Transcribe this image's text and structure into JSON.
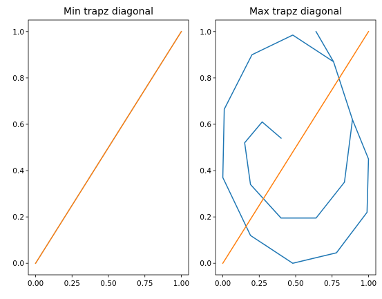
{
  "chart_data": [
    {
      "type": "line",
      "title": "Min trapz diagonal",
      "xlabel": "",
      "ylabel": "",
      "xlim": [
        -0.05,
        1.05
      ],
      "ylim": [
        -0.05,
        1.05
      ],
      "xticks": [
        "0.00",
        "0.25",
        "0.50",
        "0.75",
        "1.00"
      ],
      "yticks": [
        "0.0",
        "0.2",
        "0.4",
        "0.6",
        "0.8",
        "1.0"
      ],
      "grid": false,
      "series": [
        {
          "color": "#1f77b4",
          "x": [
            0,
            1
          ],
          "y": [
            0,
            1
          ]
        },
        {
          "color": "#ff7f0e",
          "x": [
            0,
            1
          ],
          "y": [
            0,
            1
          ]
        }
      ]
    },
    {
      "type": "line",
      "title": "Max trapz diagonal",
      "xlabel": "",
      "ylabel": "",
      "xlim": [
        -0.05,
        1.05
      ],
      "ylim": [
        -0.05,
        1.05
      ],
      "xticks": [
        "0.00",
        "0.25",
        "0.50",
        "0.75",
        "1.00"
      ],
      "yticks": [
        "0.0",
        "0.2",
        "0.4",
        "0.6",
        "0.8",
        "1.0"
      ],
      "grid": false,
      "series": [
        {
          "color": "#1f77b4",
          "x": [
            0.64,
            0.76,
            0.89,
            0.835,
            0.64,
            0.4,
            0.19,
            0.15,
            0.27,
            0.4
          ],
          "y": [
            1.0,
            0.87,
            0.62,
            0.35,
            0.195,
            0.195,
            0.34,
            0.52,
            0.61,
            0.54
          ]
        },
        {
          "color": "#1f77b4",
          "x": [
            0.64,
            0.76,
            0.89,
            0.835,
            0.64,
            0.4,
            0.19,
            0.15,
            0.27,
            0.4
          ],
          "y": [
            1.0,
            0.87,
            0.62,
            0.35,
            0.195,
            0.195,
            0.34,
            0.52,
            0.61,
            0.54
          ]
        },
        {
          "color": "#ff7f0e",
          "x": [
            0,
            1
          ],
          "y": [
            0,
            1
          ]
        }
      ]
    }
  ]
}
